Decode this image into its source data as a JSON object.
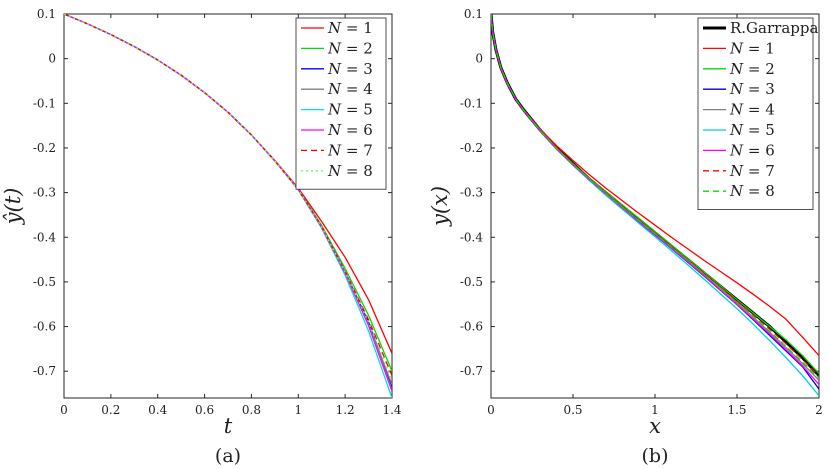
{
  "chart_data": [
    {
      "type": "line",
      "panel": "(a)",
      "xlabel": "t",
      "ylabel": "ŷ(t)",
      "xlim": [
        0,
        1.4
      ],
      "ylim": [
        -0.76,
        0.1
      ],
      "xticks": [
        "0",
        "0.2",
        "0.4",
        "0.6",
        "0.8",
        "1",
        "1.2",
        "1.4"
      ],
      "yticks": [
        "0.1",
        "0",
        "-0.1",
        "-0.2",
        "-0.3",
        "-0.4",
        "-0.5",
        "-0.6",
        "-0.7"
      ],
      "x": [
        0,
        0.1,
        0.2,
        0.3,
        0.4,
        0.5,
        0.6,
        0.7,
        0.8,
        0.9,
        1.0,
        1.1,
        1.2,
        1.3,
        1.4
      ],
      "legend_position": "top-right",
      "series": [
        {
          "name": "N = 1",
          "color": "#ff0000",
          "dash": "solid",
          "values": [
            0.1,
            0.078,
            0.054,
            0.027,
            -0.003,
            -0.037,
            -0.076,
            -0.12,
            -0.171,
            -0.228,
            -0.29,
            -0.365,
            -0.445,
            -0.54,
            -0.66
          ]
        },
        {
          "name": "N = 2",
          "color": "#00dd00",
          "dash": "solid",
          "values": [
            0.1,
            0.078,
            0.054,
            0.027,
            -0.003,
            -0.037,
            -0.076,
            -0.12,
            -0.171,
            -0.229,
            -0.292,
            -0.374,
            -0.47,
            -0.575,
            -0.7
          ]
        },
        {
          "name": "N = 3",
          "color": "#0000ff",
          "dash": "solid",
          "values": [
            0.1,
            0.078,
            0.054,
            0.027,
            -0.003,
            -0.037,
            -0.076,
            -0.12,
            -0.171,
            -0.229,
            -0.293,
            -0.377,
            -0.478,
            -0.59,
            -0.735
          ]
        },
        {
          "name": "N = 4",
          "color": "#808080",
          "dash": "solid",
          "values": [
            0.1,
            0.078,
            0.054,
            0.027,
            -0.003,
            -0.037,
            -0.076,
            -0.12,
            -0.171,
            -0.229,
            -0.293,
            -0.378,
            -0.48,
            -0.595,
            -0.73
          ]
        },
        {
          "name": "N = 5",
          "color": "#00e0e0",
          "dash": "solid",
          "values": [
            0.1,
            0.078,
            0.054,
            0.027,
            -0.003,
            -0.037,
            -0.076,
            -0.12,
            -0.171,
            -0.229,
            -0.294,
            -0.38,
            -0.485,
            -0.61,
            -0.76
          ]
        },
        {
          "name": "N = 6",
          "color": "#ff00ff",
          "dash": "solid",
          "values": [
            0.1,
            0.078,
            0.054,
            0.027,
            -0.003,
            -0.037,
            -0.076,
            -0.12,
            -0.171,
            -0.229,
            -0.293,
            -0.378,
            -0.48,
            -0.598,
            -0.745
          ]
        },
        {
          "name": "N = 7",
          "color": "#ff0000",
          "dash": "dashed",
          "values": [
            0.1,
            0.078,
            0.054,
            0.027,
            -0.003,
            -0.037,
            -0.076,
            -0.12,
            -0.171,
            -0.229,
            -0.293,
            -0.376,
            -0.476,
            -0.585,
            -0.71
          ]
        },
        {
          "name": "N = 8",
          "color": "#66ff66",
          "dash": "dotted",
          "values": [
            0.1,
            0.078,
            0.054,
            0.027,
            -0.003,
            -0.037,
            -0.076,
            -0.12,
            -0.171,
            -0.229,
            -0.293,
            -0.377,
            -0.478,
            -0.59,
            -0.72
          ]
        }
      ]
    },
    {
      "type": "line",
      "panel": "(b)",
      "xlabel": "x",
      "ylabel": "y(x)",
      "xlim": [
        0,
        2
      ],
      "ylim": [
        -0.76,
        0.1
      ],
      "xticks": [
        "0",
        "0.5",
        "1",
        "1.5",
        "2"
      ],
      "yticks": [
        "0.1",
        "0",
        "-0.1",
        "-0.2",
        "-0.3",
        "-0.4",
        "-0.5",
        "-0.6",
        "-0.7"
      ],
      "x": [
        0,
        0.01,
        0.03,
        0.06,
        0.1,
        0.15,
        0.2,
        0.3,
        0.4,
        0.5,
        0.6,
        0.7,
        0.8,
        0.9,
        1.0,
        1.1,
        1.2,
        1.3,
        1.4,
        1.5,
        1.6,
        1.7,
        1.8,
        1.9,
        2.0
      ],
      "legend_position": "top-right",
      "series": [
        {
          "name": "R.Garrappa",
          "color": "#000000",
          "dash": "solid",
          "width": 3,
          "values": [
            0.1,
            0.06,
            0.02,
            -0.02,
            -0.055,
            -0.09,
            -0.115,
            -0.16,
            -0.2,
            -0.235,
            -0.27,
            -0.3,
            -0.33,
            -0.36,
            -0.39,
            -0.42,
            -0.45,
            -0.48,
            -0.51,
            -0.54,
            -0.57,
            -0.6,
            -0.635,
            -0.67,
            -0.71
          ]
        },
        {
          "name": "N = 1",
          "color": "#ff0000",
          "dash": "solid",
          "values": [
            0.1,
            0.058,
            0.018,
            -0.022,
            -0.057,
            -0.09,
            -0.115,
            -0.158,
            -0.195,
            -0.228,
            -0.26,
            -0.29,
            -0.318,
            -0.346,
            -0.373,
            -0.4,
            -0.426,
            -0.452,
            -0.477,
            -0.502,
            -0.528,
            -0.555,
            -0.584,
            -0.624,
            -0.665
          ]
        },
        {
          "name": "N = 2",
          "color": "#00dd00",
          "dash": "solid",
          "values": [
            0.1,
            0.06,
            0.02,
            -0.02,
            -0.055,
            -0.09,
            -0.116,
            -0.16,
            -0.2,
            -0.235,
            -0.268,
            -0.298,
            -0.328,
            -0.357,
            -0.387,
            -0.417,
            -0.448,
            -0.478,
            -0.509,
            -0.54,
            -0.57,
            -0.6,
            -0.63,
            -0.665,
            -0.705
          ]
        },
        {
          "name": "N = 3",
          "color": "#0000cc",
          "dash": "solid",
          "values": [
            0.1,
            0.06,
            0.02,
            -0.02,
            -0.056,
            -0.09,
            -0.116,
            -0.162,
            -0.202,
            -0.238,
            -0.272,
            -0.304,
            -0.335,
            -0.365,
            -0.395,
            -0.425,
            -0.456,
            -0.487,
            -0.519,
            -0.551,
            -0.585,
            -0.62,
            -0.655,
            -0.69,
            -0.74
          ]
        },
        {
          "name": "N = 4",
          "color": "#808080",
          "dash": "solid",
          "values": [
            0.1,
            0.06,
            0.02,
            -0.02,
            -0.056,
            -0.09,
            -0.116,
            -0.161,
            -0.201,
            -0.237,
            -0.27,
            -0.302,
            -0.332,
            -0.362,
            -0.392,
            -0.422,
            -0.452,
            -0.483,
            -0.514,
            -0.546,
            -0.579,
            -0.613,
            -0.647,
            -0.683,
            -0.72
          ]
        },
        {
          "name": "N = 5",
          "color": "#00ccee",
          "dash": "solid",
          "values": [
            0.1,
            0.06,
            0.02,
            -0.02,
            -0.056,
            -0.09,
            -0.116,
            -0.162,
            -0.203,
            -0.239,
            -0.273,
            -0.306,
            -0.337,
            -0.368,
            -0.399,
            -0.43,
            -0.462,
            -0.494,
            -0.527,
            -0.56,
            -0.595,
            -0.632,
            -0.67,
            -0.71,
            -0.755
          ]
        },
        {
          "name": "N = 6",
          "color": "#ff00ff",
          "dash": "solid",
          "values": [
            0.1,
            0.06,
            0.02,
            -0.02,
            -0.056,
            -0.09,
            -0.116,
            -0.161,
            -0.202,
            -0.238,
            -0.271,
            -0.303,
            -0.334,
            -0.364,
            -0.394,
            -0.424,
            -0.455,
            -0.486,
            -0.518,
            -0.55,
            -0.583,
            -0.617,
            -0.652,
            -0.688,
            -0.73
          ]
        },
        {
          "name": "N = 7",
          "color": "#ff0000",
          "dash": "dashed",
          "values": [
            0.1,
            0.06,
            0.02,
            -0.02,
            -0.055,
            -0.09,
            -0.116,
            -0.16,
            -0.2,
            -0.236,
            -0.269,
            -0.3,
            -0.33,
            -0.36,
            -0.39,
            -0.42,
            -0.45,
            -0.48,
            -0.511,
            -0.542,
            -0.574,
            -0.606,
            -0.639,
            -0.674,
            -0.71
          ]
        },
        {
          "name": "N = 8",
          "color": "#00dd00",
          "dash": "dashed",
          "values": [
            0.1,
            0.06,
            0.02,
            -0.02,
            -0.055,
            -0.09,
            -0.116,
            -0.161,
            -0.201,
            -0.237,
            -0.27,
            -0.302,
            -0.332,
            -0.362,
            -0.392,
            -0.422,
            -0.452,
            -0.483,
            -0.514,
            -0.546,
            -0.578,
            -0.611,
            -0.645,
            -0.68,
            -0.715
          ]
        }
      ]
    }
  ]
}
